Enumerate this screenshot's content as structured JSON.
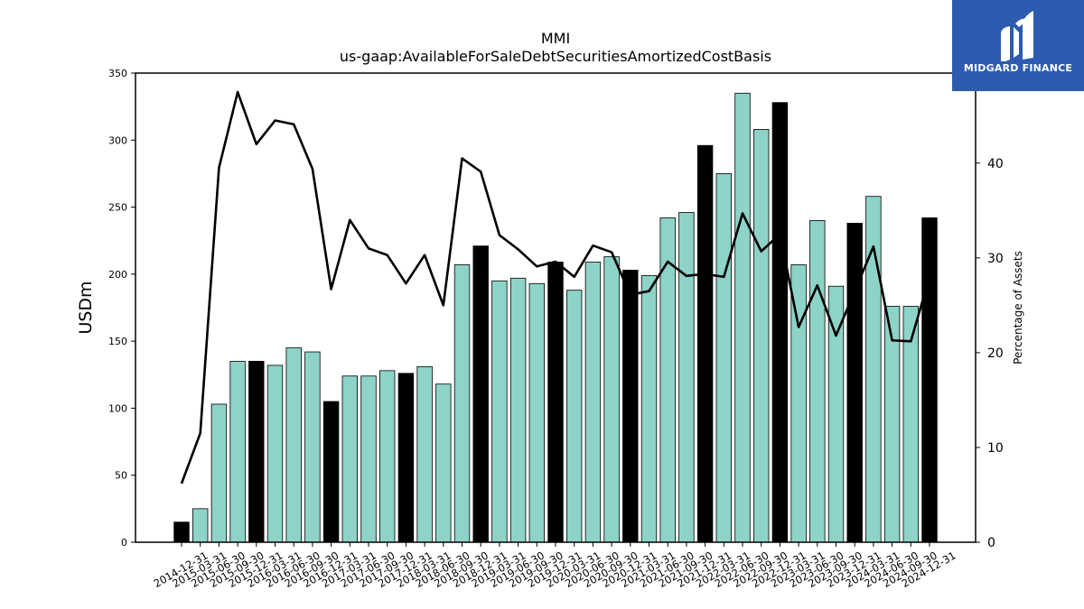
{
  "chart_data": {
    "type": "bar",
    "title": "MMI",
    "subtitle": "us-gaap:AvailableForSaleDebtSecuritiesAmortizedCostBasis",
    "ylabel": "USDm",
    "y2label": "Percentage of Assets",
    "ylim": [
      0,
      350
    ],
    "y2lim": [
      0,
      49.5
    ],
    "yticks": [
      0,
      50,
      100,
      150,
      200,
      250,
      300,
      350
    ],
    "y2ticks": [
      0,
      10,
      20,
      30,
      40
    ],
    "categories": [
      "2014-12-31",
      "2015-03-31",
      "2015-06-30",
      "2015-09-30",
      "2015-12-31",
      "2016-03-31",
      "2016-06-30",
      "2016-09-30",
      "2016-12-31",
      "2017-03-31",
      "2017-06-30",
      "2017-09-30",
      "2017-12-31",
      "2018-03-31",
      "2018-06-30",
      "2018-09-30",
      "2018-12-31",
      "2019-03-31",
      "2019-06-30",
      "2019-09-30",
      "2019-12-31",
      "2020-03-31",
      "2020-06-30",
      "2020-09-30",
      "2020-12-31",
      "2021-03-31",
      "2021-06-30",
      "2021-09-30",
      "2021-12-31",
      "2022-03-31",
      "2022-06-30",
      "2022-09-30",
      "2022-12-31",
      "2023-03-31",
      "2023-06-30",
      "2023-09-30",
      "2023-12-31",
      "2024-03-31",
      "2024-06-30",
      "2024-09-30",
      "2024-12-31"
    ],
    "series": [
      {
        "type": "bar",
        "values": [
          15,
          25,
          103,
          135,
          135,
          132,
          145,
          142,
          105,
          124,
          124,
          128,
          126,
          131,
          118,
          207,
          221,
          195,
          197,
          193,
          209,
          188,
          209,
          213,
          203,
          199,
          242,
          246,
          296,
          275,
          335,
          308,
          328,
          207,
          240,
          191,
          238,
          258,
          176,
          176,
          242
        ],
        "highlight": [
          0,
          4,
          8,
          12,
          16,
          20,
          24,
          28,
          32,
          36,
          40
        ]
      },
      {
        "type": "line",
        "axis": "right",
        "values": [
          6.2,
          11.5,
          39.5,
          47.5,
          42.0,
          44.5,
          44.1,
          39.4,
          26.7,
          34.0,
          31.0,
          30.3,
          27.3,
          30.3,
          25.0,
          40.5,
          39.1,
          32.4,
          30.9,
          29.1,
          29.6,
          28.0,
          31.3,
          30.6,
          26.1,
          26.5,
          29.6,
          28.1,
          28.3,
          28.0,
          34.7,
          30.7,
          32.5,
          22.7,
          27.1,
          21.8,
          26.5,
          31.2,
          21.3,
          21.2,
          28.0
        ]
      }
    ],
    "colors": {
      "bar": "#8dd3c7",
      "bar_highlight": "#000000",
      "line": "#000000"
    },
    "grid": false
  },
  "logo": {
    "text": "MIDGARD FINANCE",
    "background": "#2d5bb0"
  }
}
